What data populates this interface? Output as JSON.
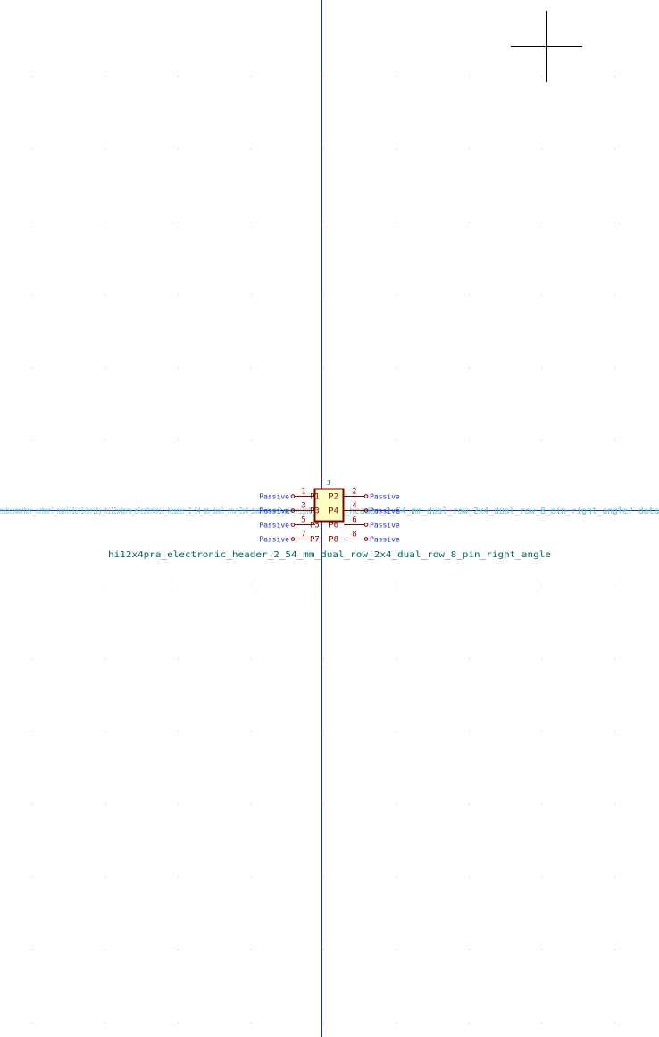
{
  "schematic": {
    "colors": {
      "background": "#ffffff",
      "grid_dot": "#c8c8c8",
      "axis_line": "#1f2bbf",
      "body_fill": "#ffffc2",
      "body_outline": "#840000",
      "pin_line": "#840000",
      "pin_number": "#a90000",
      "pin_name": "#840000",
      "pin_type": "#1f2bbf",
      "field_text": "#006464",
      "hidden_field_text": "#5ecad0",
      "cursor": "#000000"
    },
    "component": {
      "reference": "J",
      "value": "hi12x4pra_electronic_header_2_54_mm_dual_row_2x4_dual_row_8_pin_right_angle",
      "hidden_field_left": "nubcomm/hdr_nchmrl_nonl/1at1/prity_hi12x4pra_electronic_header_2_54_mm_dual_row_2x4_dual_row_8_pin_right_angle/",
      "hidden_field_right": "ds_header_2_54_mm_dual_row_2x4_dual_row_8_pin_right_angle/ data",
      "left_pins": [
        {
          "number": "1",
          "name": "P1",
          "type": "Passive"
        },
        {
          "number": "3",
          "name": "P3",
          "type": "Passive"
        },
        {
          "number": "5",
          "name": "P5",
          "type": "Passive"
        },
        {
          "number": "7",
          "name": "P7",
          "type": "Passive"
        }
      ],
      "right_pins": [
        {
          "number": "2",
          "name": "P2",
          "type": "Passive"
        },
        {
          "number": "4",
          "name": "P4",
          "type": "Passive"
        },
        {
          "number": "6",
          "name": "P6",
          "type": "Passive"
        },
        {
          "number": "8",
          "name": "P8",
          "type": "Passive"
        }
      ]
    }
  }
}
